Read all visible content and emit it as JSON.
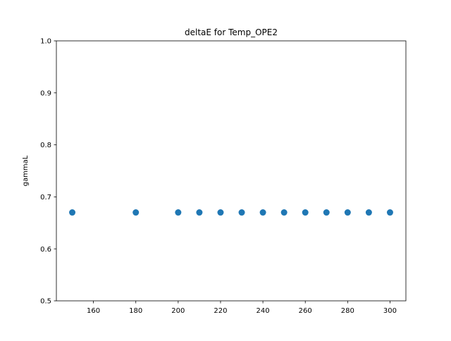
{
  "chart_data": {
    "type": "scatter",
    "title": "deltaE for Temp_OPE2",
    "xlabel": "",
    "ylabel": "gammaL",
    "x": [
      150,
      180,
      200,
      210,
      220,
      230,
      240,
      250,
      260,
      270,
      280,
      290,
      300
    ],
    "y": [
      0.67,
      0.67,
      0.67,
      0.67,
      0.67,
      0.67,
      0.67,
      0.67,
      0.67,
      0.67,
      0.67,
      0.67,
      0.67
    ],
    "xlim": [
      142.5,
      307.5
    ],
    "ylim": [
      0.5,
      1.0
    ],
    "x_ticks": [
      "160",
      "180",
      "200",
      "220",
      "240",
      "260",
      "280",
      "300"
    ],
    "y_ticks": [
      "0.5",
      "0.6",
      "0.7",
      "0.8",
      "0.9",
      "1.0"
    ],
    "grid": false,
    "legend": "none",
    "marker_color": "#1f77b4"
  }
}
